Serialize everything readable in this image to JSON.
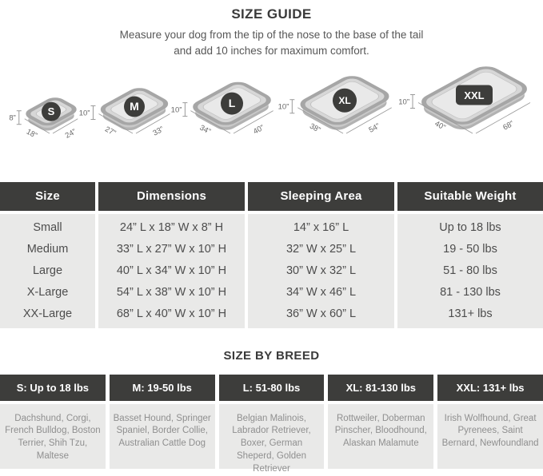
{
  "header": {
    "title": "SIZE GUIDE",
    "subtitle_line1": "Measure your dog from the tip of the nose to the base of the tail",
    "subtitle_line2": "and add 10 inches for maximum comfort."
  },
  "colors": {
    "dark": "#3d3d3b",
    "cell_background": "#e9e9e8",
    "body_text": "#4d4d4d",
    "breed_text": "#8f8f8f",
    "bed_rim": "#a6a6a6",
    "bed_top": "#d7d7d7",
    "bed_surface": "#e9e9e9",
    "bed_base": "#b2b2b2",
    "bed_mid": "#c8c8c8",
    "dimension_text": "#686868",
    "dimension_line": "#9a9a9a"
  },
  "beds": [
    {
      "badge": "S",
      "badge_shape": "circle",
      "height_label": "8”",
      "width_label": "18”",
      "length_label": "24”"
    },
    {
      "badge": "M",
      "badge_shape": "circle",
      "height_label": "10”",
      "width_label": "27”",
      "length_label": "33”"
    },
    {
      "badge": "L",
      "badge_shape": "circle",
      "height_label": "10”",
      "width_label": "34”",
      "length_label": "40”"
    },
    {
      "badge": "XL",
      "badge_shape": "circle",
      "height_label": "10”",
      "width_label": "38”",
      "length_label": "54”"
    },
    {
      "badge": "XXL",
      "badge_shape": "pill",
      "height_label": "10”",
      "width_label": "40”",
      "length_label": "68”"
    }
  ],
  "size_table": {
    "columns": [
      "Size",
      "Dimensions",
      "Sleeping Area",
      "Suitable Weight"
    ],
    "rows": [
      [
        "Small",
        "24” L x 18” W x 8” H",
        "14” x 16” L",
        "Up to 18 lbs"
      ],
      [
        "Medium",
        "33” L x 27” W x 10” H",
        "32” W x 25” L",
        "19 - 50 lbs"
      ],
      [
        "Large",
        "40” L x 34” W x 10” H",
        "30” W x 32” L",
        "51 - 80 lbs"
      ],
      [
        "X-Large",
        "54” L x 38” W x 10” H",
        "34” W x 46” L",
        "81 - 130 lbs"
      ],
      [
        "XX-Large",
        "68” L x 40” W x 10” H",
        "36” W x 60” L",
        "131+ lbs"
      ]
    ]
  },
  "breed_section": {
    "title": "SIZE BY BREED",
    "columns": [
      {
        "header": "S: Up to 18 lbs",
        "breeds": "Dachshund, Corgi, French Bulldog, Boston Terrier, Shih Tzu, Maltese"
      },
      {
        "header": "M: 19-50 lbs",
        "breeds": "Basset Hound, Springer Spaniel, Border Collie, Australian Cattle Dog"
      },
      {
        "header": "L: 51-80 lbs",
        "breeds": "Belgian Malinois, Labrador Retriever, Boxer, German Sheperd, Golden Retriever"
      },
      {
        "header": "XL: 81-130 lbs",
        "breeds": "Rottweiler, Doberman Pinscher, Bloodhound, Alaskan Malamute"
      },
      {
        "header": "XXL: 131+ lbs",
        "breeds": "Irish Wolfhound, Great Pyrenees, Saint Bernard, Newfoundland"
      }
    ]
  }
}
